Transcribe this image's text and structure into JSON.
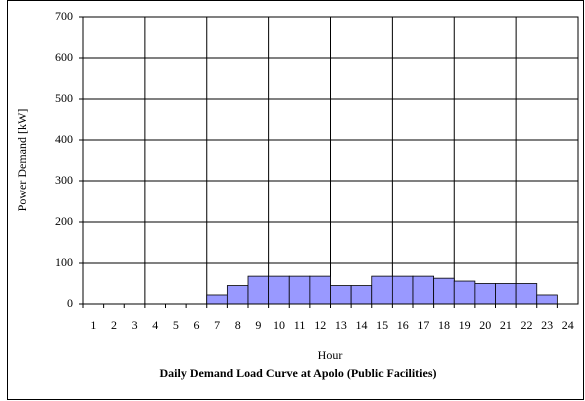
{
  "chart_data": {
    "type": "bar",
    "title": "Daily Demand Load Curve at Apolo (Public Facilities)",
    "x_label": "Hour",
    "y_label": "Power Demand [kW]",
    "categories": [
      "1",
      "2",
      "3",
      "4",
      "5",
      "6",
      "7",
      "8",
      "9",
      "10",
      "11",
      "12",
      "13",
      "14",
      "15",
      "16",
      "17",
      "18",
      "19",
      "20",
      "21",
      "22",
      "23",
      "24"
    ],
    "values": [
      0,
      0,
      0,
      0,
      0,
      0,
      22,
      45,
      68,
      68,
      68,
      68,
      45,
      45,
      68,
      68,
      68,
      63,
      56,
      50,
      50,
      50,
      22,
      0
    ],
    "color": "#9999ff",
    "ylim": [
      0,
      700
    ],
    "yticks": [
      0,
      100,
      200,
      300,
      400,
      500,
      600,
      700
    ],
    "grid": true
  }
}
